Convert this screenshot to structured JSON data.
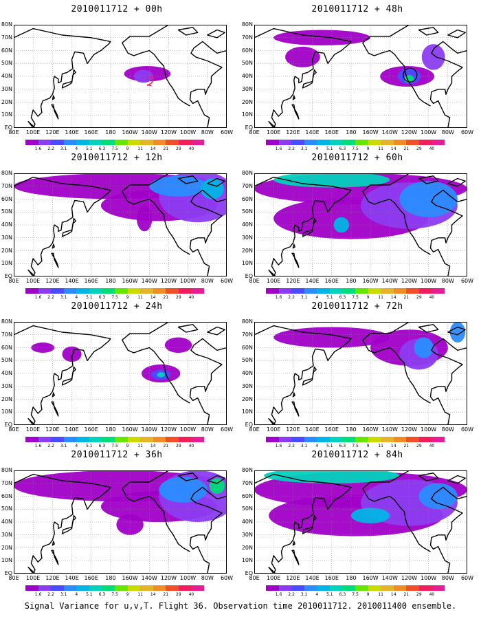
{
  "panels": [
    {
      "title": "2010011712 + 00h",
      "intensity": 0
    },
    {
      "title": "2010011712 + 48h",
      "intensity": 4
    },
    {
      "title": "2010011712 + 12h",
      "intensity": 1
    },
    {
      "title": "2010011712 + 60h",
      "intensity": 5
    },
    {
      "title": "2010011712 + 24h",
      "intensity": 2
    },
    {
      "title": "2010011712 + 72h",
      "intensity": 6
    },
    {
      "title": "2010011712 + 36h",
      "intensity": 3
    },
    {
      "title": "2010011712 + 84h",
      "intensity": 7
    }
  ],
  "lat_labels": [
    "80N",
    "70N",
    "60N",
    "50N",
    "40N",
    "30N",
    "20N",
    "10N",
    "EQ"
  ],
  "lon_labels": [
    "80E",
    "100E",
    "120E",
    "140E",
    "160E",
    "180",
    "160W",
    "140W",
    "120W",
    "100W",
    "80W",
    "60W"
  ],
  "colorbar": {
    "labels": [
      "1.6",
      "2.2",
      "3.1",
      "4",
      "5.1",
      "6.3",
      "7.5",
      "9",
      "11",
      "14",
      "21",
      "29",
      "40"
    ],
    "colors": [
      "#a000c8",
      "#8c3cf0",
      "#4a4aff",
      "#2a8cff",
      "#00b4e6",
      "#00d2be",
      "#00dc78",
      "#64e600",
      "#c8dc00",
      "#e6b42a",
      "#f08c28",
      "#f05028",
      "#f01e5a",
      "#e61e96"
    ]
  },
  "caption": "Signal Variance for u,v,T. Flight 36. Observation time 2010011712. 2010011400 ensemble."
}
